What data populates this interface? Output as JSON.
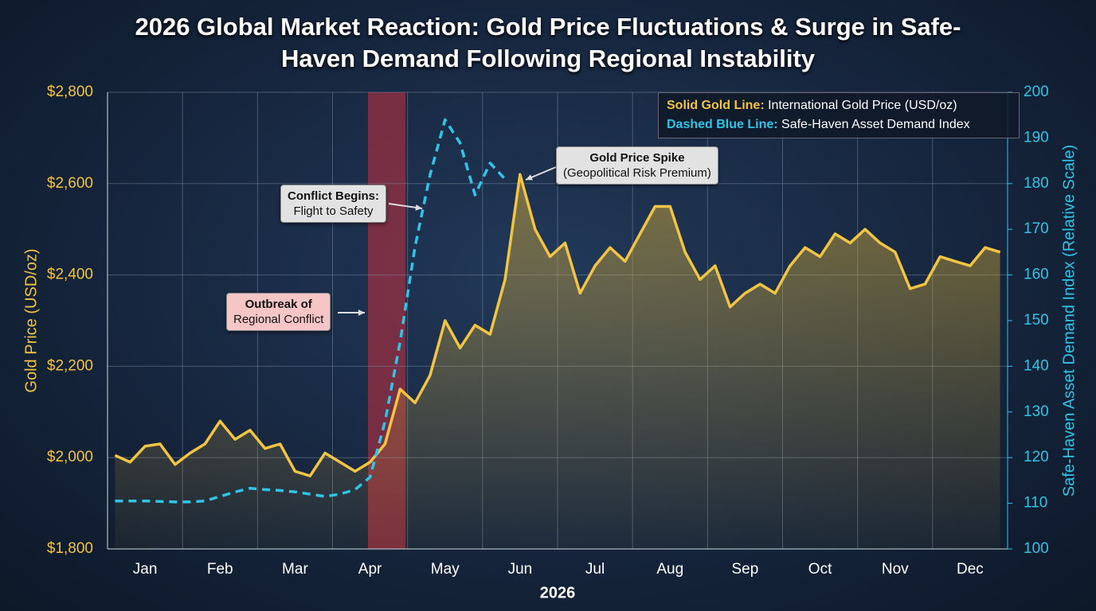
{
  "chart_data": {
    "type": "line",
    "title": "2026 Global Market Reaction: Gold Price Fluctuations & Surge in Safe-Haven Demand Following Regional Instability",
    "x_label": "2026",
    "y_label": "Gold Price (USD/oz)",
    "y2_label": "Safe-Haven Asset Demand Index (Relative Scale)",
    "categories": [
      null,
      null,
      "Jan",
      null,
      null,
      null,
      null,
      "Feb",
      null,
      null,
      null,
      null,
      "Mar",
      null,
      null,
      null,
      null,
      "Apr",
      null,
      null,
      null,
      null,
      "May",
      null,
      null,
      null,
      null,
      "Jun",
      null,
      null,
      null,
      null,
      "Jul",
      null,
      null,
      null,
      null,
      "Aug",
      null,
      null,
      null,
      null,
      "Sep",
      null,
      null,
      null,
      null,
      "Oct",
      null,
      null,
      null,
      null,
      "Nov",
      null,
      null,
      null,
      null,
      "Dec",
      null,
      null
    ],
    "series": [
      {
        "name": "International Gold Price (USD/oz)",
        "legend_key": "Solid Gold Line:",
        "color": "#f2c443",
        "axis": "y",
        "values": [
          2005,
          1990,
          2025,
          2030,
          1985,
          2010,
          2030,
          2080,
          2040,
          2060,
          2020,
          2030,
          1970,
          1960,
          2010,
          1990,
          1970,
          1990,
          2030,
          2150,
          2120,
          2180,
          2300,
          2240,
          2290,
          2270,
          2390,
          2620,
          2500,
          2440,
          2470,
          2360,
          2420,
          2460,
          2430,
          2490,
          2550,
          2550,
          2450,
          2390,
          2420,
          2330,
          2360,
          2380,
          2360,
          2420,
          2460,
          2440,
          2490,
          2470,
          2500,
          2470,
          2450,
          2370,
          2380,
          2440,
          2430,
          2420,
          2460,
          2450
        ]
      },
      {
        "name": "Safe-Haven Asset Demand Index",
        "legend_key": "Dashed Blue Line:",
        "color": "#2fc4e8",
        "axis": "y2",
        "values": [
          110.5,
          110.5,
          110.5,
          110.4,
          110.3,
          110.3,
          110.5,
          111.5,
          112.5,
          113.3,
          113,
          112.8,
          112.5,
          112,
          111.5,
          112,
          113,
          115.7,
          127.9,
          145.3,
          166.2,
          181.9,
          194,
          188.9,
          177.5,
          184.5,
          181,
          null,
          null,
          null,
          null,
          null,
          null,
          null,
          null,
          null,
          null,
          null,
          null,
          null,
          null,
          null,
          null,
          null,
          null,
          null,
          null,
          null,
          null,
          null,
          null,
          null,
          null,
          null,
          null,
          null,
          null,
          null,
          null,
          null
        ]
      }
    ],
    "ylim": [
      1800,
      2800
    ],
    "yticks": [
      {
        "value": 1800,
        "label": "$1,800"
      },
      {
        "value": 2000,
        "label": "$2,000"
      },
      {
        "value": 2200,
        "label": "$2,200"
      },
      {
        "value": 2400,
        "label": "$2,400"
      },
      {
        "value": 2600,
        "label": "$2,600"
      },
      {
        "value": 2800,
        "label": "$2,800"
      }
    ],
    "y2lim": [
      100,
      200
    ],
    "y2ticks": [
      100,
      110,
      120,
      130,
      140,
      150,
      160,
      170,
      180,
      190,
      200
    ],
    "grid": true,
    "legend": "upper right",
    "annotations": [
      {
        "lines": [
          "Outbreak of",
          "Regional Conflict"
        ]
      },
      {
        "lines": [
          "Conflict Begins:",
          "Flight to Safety"
        ]
      },
      {
        "lines": [
          "Gold Price Spike",
          "(Geopolitical Risk Premium)"
        ]
      }
    ]
  }
}
